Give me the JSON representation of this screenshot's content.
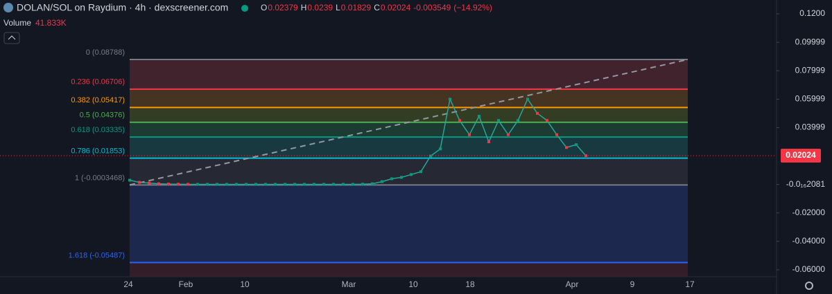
{
  "header": {
    "title": "DOLAN/SOL on Raydium · 4h · dexscreener.com",
    "ohlc": [
      {
        "label": "O",
        "value": 0.02379
      },
      {
        "label": "H",
        "value": 0.0239
      },
      {
        "label": "L",
        "value": 0.01829
      },
      {
        "label": "C",
        "value": 0.02024
      }
    ],
    "change": -0.003549,
    "change_percent": "(−14.92%)",
    "volume_label": "Volume",
    "volume_value": "41.833K"
  },
  "chart_data": {
    "type": "line",
    "color": "#26a69a",
    "ylim": [
      -0.06,
      0.12
    ],
    "yticks": [
      {
        "value": 0.12,
        "label": "0.1200"
      },
      0.09999,
      0.07999,
      0.05999,
      0.03999,
      {
        "value": -2.081e-17,
        "label": "-0.0₁₆2081"
      },
      {
        "value": -0.02,
        "label": "-0.02000"
      },
      {
        "value": -0.04,
        "label": "-0.04000"
      },
      {
        "value": -0.06,
        "label": "-0.06000"
      }
    ],
    "xticks": [
      "24",
      "Feb",
      "10",
      "Mar",
      "10",
      "18",
      "Apr",
      "9",
      "17"
    ],
    "values": [
      0.003,
      0.0015,
      0.001,
      0.0005,
      0.0003,
      0.0002,
      0.0001,
      0.0001,
      0.0001,
      0.0001,
      0.0001,
      0.0001,
      0.0001,
      0.0001,
      0.0001,
      0.0001,
      0.0001,
      0.0001,
      0.0001,
      0.0001,
      0.0001,
      0.0001,
      0.0001,
      0.0001,
      0.0002,
      0.0005,
      0.002,
      0.004,
      0.005,
      0.007,
      0.009,
      0.02,
      0.025,
      0.06,
      0.045,
      0.035,
      0.048,
      0.03,
      0.045,
      0.035,
      0.045,
      0.06,
      0.05,
      0.045,
      0.035,
      0.026,
      0.028,
      0.02024
    ],
    "fib_levels": [
      {
        "label": "0 (0.08788)",
        "price": 0.08788,
        "color": "#787b86",
        "fill": "#4a2630"
      },
      {
        "label": "0.236 (0.06706)",
        "price": 0.06706,
        "color": "#f23645",
        "fill": "#4f3a22"
      },
      {
        "label": "0.382 (0.05417)",
        "price": 0.05417,
        "color": "#ff9800",
        "fill": "#3a4424"
      },
      {
        "label": "0.5 (0.04376)",
        "price": 0.04376,
        "color": "#4caf50",
        "fill": "#1d4236"
      },
      {
        "label": "0.618 (0.03335)",
        "price": 0.03335,
        "color": "#089981",
        "fill": "#1a3f45"
      },
      {
        "label": "0.786 (0.01853)",
        "price": 0.01853,
        "color": "#00bcd4",
        "fill": "#2a2d36"
      },
      {
        "label": "1 (-0.0003468)",
        "price": -0.0003468,
        "color": "#787b86",
        "fill": "#1f2b55"
      },
      {
        "label": "1.618 (-0.05487)",
        "price": -0.05487,
        "color": "#2962ff",
        "fill": "#3a1f2a"
      }
    ]
  }
}
